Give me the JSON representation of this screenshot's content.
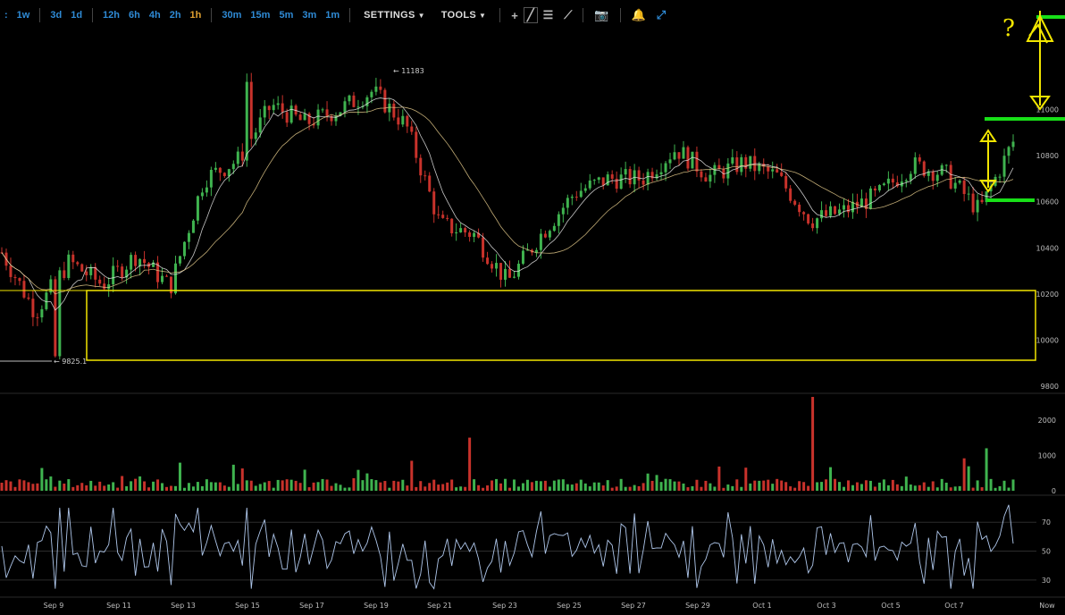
{
  "toolbar": {
    "timeframes_a": [
      ":",
      "1w",
      "3d",
      "1d"
    ],
    "timeframes_b": [
      "12h",
      "6h",
      "4h",
      "2h",
      "1h"
    ],
    "timeframes_c": [
      "30m",
      "15m",
      "5m",
      "3m",
      "1m"
    ],
    "active_timeframe": "1h",
    "settings_label": "SETTINGS",
    "tools_label": "TOOLS",
    "tool_icons": [
      "crosshair-icon",
      "trendline-icon",
      "horizontal-lines-icon",
      "fan-icon"
    ],
    "extra_icons": [
      "camera-icon",
      "bell-icon",
      "fullscreen-icon"
    ]
  },
  "price_axis": {
    "ticks": [
      "11000",
      "10800",
      "10600",
      "10400",
      "10200",
      "10000",
      "9800"
    ],
    "ylim": [
      9800,
      11320
    ]
  },
  "volume_axis": {
    "ticks": [
      "2000",
      "1000",
      "0"
    ]
  },
  "rsi_axis": {
    "ticks": [
      "70",
      "50",
      "30"
    ]
  },
  "x_axis": {
    "ticks": [
      "Sep 9",
      "Sep 11",
      "Sep 13",
      "Sep 15",
      "Sep 17",
      "Sep 19",
      "Sep 21",
      "Sep 23",
      "Sep 25",
      "Sep 27",
      "Sep 29",
      "Oct 1",
      "Oct 3",
      "Oct 5",
      "Oct 7",
      "Now"
    ]
  },
  "annotations": {
    "high_label": "← 11183",
    "low_label": "← 9825.1",
    "question_mark": "?"
  },
  "colors": {
    "up": "#3fb34f",
    "down": "#c8322b",
    "rsi": "#aec6ea",
    "ma_fast": "#e8e8e8",
    "ma_slow": "#e3c98a",
    "highlight_green": "#18e018",
    "highlight_yellow": "#f2e600"
  },
  "chart_data": {
    "type": "candlestick",
    "x": [
      "Sep 8",
      "Sep 9",
      "Sep 10",
      "Sep 11",
      "Sep 12",
      "Sep 13",
      "Sep 14",
      "Sep 15",
      "Sep 16",
      "Sep 17",
      "Sep 18",
      "Sep 19",
      "Sep 20",
      "Sep 21",
      "Sep 22",
      "Sep 23",
      "Sep 24",
      "Sep 25",
      "Sep 26",
      "Sep 27",
      "Sep 28",
      "Sep 29",
      "Sep 30",
      "Oct 1",
      "Oct 2",
      "Oct 3",
      "Oct 4",
      "Oct 5",
      "Oct 6",
      "Oct 7",
      "Oct 8"
    ],
    "close": [
      10380,
      10120,
      10340,
      10240,
      10370,
      10230,
      10700,
      10780,
      11020,
      10940,
      11000,
      11080,
      10930,
      10500,
      10460,
      10250,
      10460,
      10640,
      10700,
      10700,
      10830,
      10710,
      10770,
      10710,
      10520,
      10560,
      10630,
      10760,
      10720,
      10560,
      10860
    ],
    "price_high": 11183,
    "price_low": 9825.1,
    "volume_ylim": [
      0,
      2600
    ],
    "rsi_ylim": [
      20,
      85
    ]
  }
}
